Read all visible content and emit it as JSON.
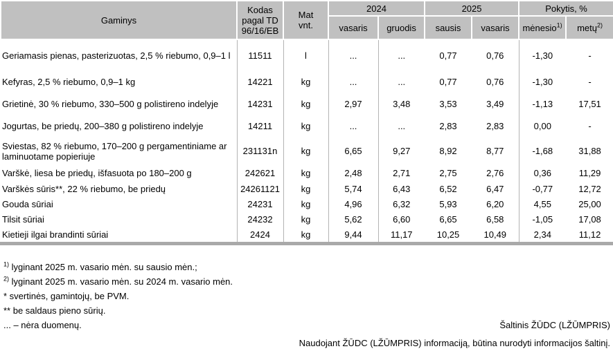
{
  "colors": {
    "header_bg": "#c0c0c0",
    "grid_line": "#b3b3b3",
    "bottom_bar": "#a9a9a9"
  },
  "table": {
    "headers": {
      "gaminys": "Gaminys",
      "kodas": "Kodas pagal TD 96/16/EB",
      "mat_line1": "Mat",
      "mat_line2": "vnt.",
      "y2024": "2024",
      "y2025": "2025",
      "pokytis": "Pokytis, %",
      "sub": {
        "vasaris_2024": "vasaris",
        "gruodis": "gruodis",
        "sausis": "sausis",
        "vasaris_2025": "vasaris",
        "menesio": "mėnesio",
        "menesio_sup": "1)",
        "metu": "metų",
        "metu_sup": "2)"
      }
    },
    "rows": [
      {
        "cells": [
          "Geriamasis pienas, pasterizuotas, 2,5 % riebumo, 0,9–1 l",
          "11511",
          "l",
          "...",
          "...",
          "0,77",
          "0,76",
          "-1,30",
          "-"
        ]
      },
      {
        "cells": [
          "Kefyras, 2,5 % riebumo, 0,9–1 kg",
          "14221",
          "kg",
          "...",
          "...",
          "0,77",
          "0,76",
          "-1,30",
          "-"
        ]
      },
      {
        "cells": [
          "Grietinė, 30 % riebumo, 330–500 g polistireno indelyje",
          "14231",
          "kg",
          "2,97",
          "3,48",
          "3,53",
          "3,49",
          "-1,13",
          "17,51"
        ]
      },
      {
        "cells": [
          "Jogurtas, be priedų, 200–380 g polistireno indelyje",
          "14211",
          "kg",
          "...",
          "...",
          "2,83",
          "2,83",
          "0,00",
          "-"
        ]
      },
      {
        "cells": [
          "Sviestas, 82 % riebumo, 170–200 g pergamentiniame ar laminuotame popieriuje",
          "231131n",
          "kg",
          "6,65",
          "9,27",
          "8,92",
          "8,77",
          "-1,68",
          "31,88"
        ]
      },
      {
        "cells": [
          "Varškė, liesa be priedų, išfasuota po 180–200 g",
          "242621",
          "kg",
          "2,48",
          "2,71",
          "2,75",
          "2,76",
          "0,36",
          "11,29"
        ]
      },
      {
        "cells": [
          "Varškės sūris**, 22 % riebumo, be priedų",
          "24261121",
          "kg",
          "5,74",
          "6,43",
          "6,52",
          "6,47",
          "-0,77",
          "12,72"
        ]
      },
      {
        "cells": [
          "Gouda sūriai",
          "24231",
          "kg",
          "4,96",
          "6,32",
          "5,93",
          "6,20",
          "4,55",
          "25,00"
        ]
      },
      {
        "cells": [
          "Tilsit sūriai",
          "24232",
          "kg",
          "5,62",
          "6,60",
          "6,65",
          "6,58",
          "-1,05",
          "17,08"
        ]
      },
      {
        "cells": [
          "Kietieji ilgai brandinti sūriai",
          "2424",
          "kg",
          "9,44",
          "11,17",
          "10,25",
          "10,49",
          "2,34",
          "11,12"
        ]
      }
    ]
  },
  "footnotes": [
    {
      "sup": "1)",
      "text": " lyginant 2025 m. vasario mėn. su sausio mėn.;"
    },
    {
      "sup": "2)",
      "text": " lyginant 2025 m. vasario mėn. su 2024 m. vasario mėn."
    },
    {
      "sup": "",
      "text": "* svertinės, gamintojų, be PVM."
    },
    {
      "sup": "",
      "text": "** be saldaus pieno sūrių."
    }
  ],
  "no_data_note": "... – nėra duomenų.",
  "source": {
    "line1": "Šaltinis ŽŪDC (LŽŪMPRIS)",
    "line2": "Naudojant ŽŪDC (LŽŪMPRIS) informaciją, būtina nurodyti informacijos šaltinį."
  }
}
